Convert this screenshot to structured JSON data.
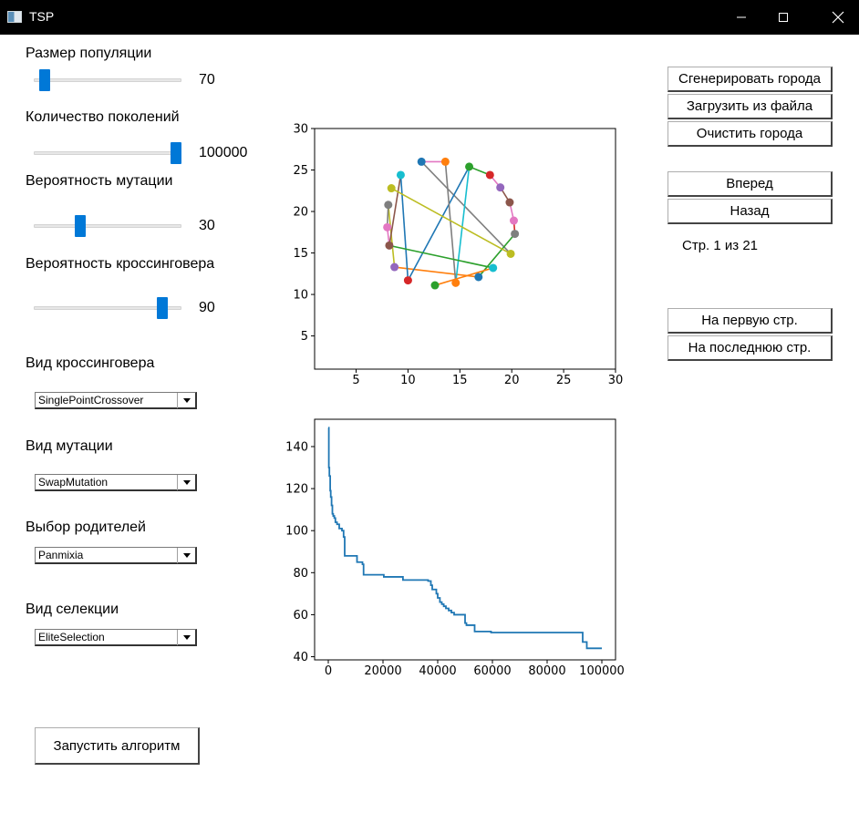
{
  "window": {
    "title": "TSP"
  },
  "controls": {
    "population": {
      "label": "Размер популяции",
      "value": "70",
      "fraction": 0.04
    },
    "generations": {
      "label": "Количество поколений",
      "value": "100000",
      "fraction": 1.0
    },
    "mutation_prob": {
      "label": "Вероятность мутации",
      "value": "30",
      "fraction": 0.3
    },
    "crossover_prob": {
      "label": "Вероятность кроссинговера",
      "value": "90",
      "fraction": 0.9
    },
    "crossover_type": {
      "label": "Вид кроссинговера",
      "selected": "SinglePointCrossover"
    },
    "mutation_type": {
      "label": "Вид мутации",
      "selected": "SwapMutation"
    },
    "parent_selection": {
      "label": "Выбор родителей",
      "selected": "Panmixia"
    },
    "selection_type": {
      "label": "Вид селекции",
      "selected": "EliteSelection"
    },
    "run_button": "Запустить алгоритм"
  },
  "right_panel": {
    "generate": "Сгенерировать города",
    "load": "Загрузить из файла",
    "clear": "Очистить города",
    "forward": "Вперед",
    "back": "Назад",
    "page_status": "Стр. 1 из 21",
    "first_page": "На первую стр.",
    "last_page": "На последнюю стр."
  },
  "chart_data": [
    {
      "type": "scatter",
      "xlim": [
        1,
        30
      ],
      "ylim": [
        1,
        30
      ],
      "xticks": [
        5,
        10,
        15,
        20,
        25,
        30
      ],
      "yticks": [
        5,
        10,
        15,
        20,
        25,
        30
      ],
      "cities": [
        {
          "x": 11.3,
          "y": 26.0,
          "color": "#1f77b4"
        },
        {
          "x": 13.6,
          "y": 26.0,
          "color": "#ff7f0e"
        },
        {
          "x": 15.9,
          "y": 25.4,
          "color": "#2ca02c"
        },
        {
          "x": 17.9,
          "y": 24.4,
          "color": "#d62728"
        },
        {
          "x": 18.9,
          "y": 22.9,
          "color": "#9467bd"
        },
        {
          "x": 19.8,
          "y": 21.1,
          "color": "#8c564b"
        },
        {
          "x": 20.2,
          "y": 18.9,
          "color": "#e377c2"
        },
        {
          "x": 20.3,
          "y": 17.3,
          "color": "#7f7f7f"
        },
        {
          "x": 19.9,
          "y": 14.9,
          "color": "#bcbd22"
        },
        {
          "x": 18.2,
          "y": 13.2,
          "color": "#17becf"
        },
        {
          "x": 16.8,
          "y": 12.1,
          "color": "#1f77b4"
        },
        {
          "x": 14.6,
          "y": 11.4,
          "color": "#ff7f0e"
        },
        {
          "x": 12.6,
          "y": 11.1,
          "color": "#2ca02c"
        },
        {
          "x": 10.0,
          "y": 11.7,
          "color": "#d62728"
        },
        {
          "x": 8.7,
          "y": 13.3,
          "color": "#9467bd"
        },
        {
          "x": 8.2,
          "y": 15.9,
          "color": "#8c564b"
        },
        {
          "x": 8.0,
          "y": 18.1,
          "color": "#e377c2"
        },
        {
          "x": 8.1,
          "y": 20.8,
          "color": "#7f7f7f"
        },
        {
          "x": 8.4,
          "y": 22.8,
          "color": "#bcbd22"
        },
        {
          "x": 9.3,
          "y": 24.4,
          "color": "#17becf"
        }
      ],
      "route": [
        {
          "from": 0,
          "to": 1,
          "color": "#e377c2"
        },
        {
          "from": 0,
          "to": 8,
          "color": "#7f7f7f"
        },
        {
          "from": 3,
          "to": 4,
          "color": "#e377c2"
        },
        {
          "from": 4,
          "to": 5,
          "color": "#8c564b"
        },
        {
          "from": 5,
          "to": 6,
          "color": "#e377c2"
        },
        {
          "from": 6,
          "to": 7,
          "color": "#d62728"
        },
        {
          "from": 7,
          "to": 10,
          "color": "#2ca02c"
        },
        {
          "from": 10,
          "to": 14,
          "color": "#ff7f0e"
        },
        {
          "from": 14,
          "to": 17,
          "color": "#bcbd22"
        },
        {
          "from": 17,
          "to": 16,
          "color": "#7f7f7f"
        },
        {
          "from": 16,
          "to": 15,
          "color": "#e377c2"
        },
        {
          "from": 15,
          "to": 19,
          "color": "#8c564b"
        },
        {
          "from": 19,
          "to": 13,
          "color": "#1f77b4"
        },
        {
          "from": 13,
          "to": 2,
          "color": "#1f77b4"
        },
        {
          "from": 2,
          "to": 11,
          "color": "#17becf"
        },
        {
          "from": 11,
          "to": 1,
          "color": "#7f7f7f"
        },
        {
          "from": 18,
          "to": 8,
          "color": "#bcbd22"
        },
        {
          "from": 15,
          "to": 9,
          "color": "#2ca02c"
        },
        {
          "from": 12,
          "to": 9,
          "color": "#ff7f0e"
        },
        {
          "from": 2,
          "to": 3,
          "color": "#2ca02c"
        }
      ]
    },
    {
      "type": "line",
      "xlim": [
        -5000,
        105000
      ],
      "ylim": [
        38.5,
        153
      ],
      "xticks": [
        0,
        20000,
        40000,
        60000,
        80000,
        100000
      ],
      "yticks": [
        40,
        60,
        80,
        100,
        120,
        140
      ],
      "color": "#1f77b4",
      "x": [
        0,
        200,
        400,
        700,
        900,
        1200,
        1500,
        1800,
        2200,
        2600,
        3200,
        4000,
        5000,
        5600,
        6000,
        10000,
        10500,
        12000,
        12500,
        12900,
        20000,
        20300,
        27000,
        27300,
        36000,
        36500,
        37500,
        38000,
        39500,
        40000,
        40800,
        41500,
        42200,
        43000,
        44000,
        45000,
        46000,
        47000,
        50000,
        50500,
        53000,
        53500,
        59000,
        59500,
        92500,
        93000,
        94000,
        94500,
        100000
      ],
      "y": [
        149,
        130,
        126,
        119,
        116,
        112,
        108,
        107,
        106,
        104,
        103,
        101,
        100,
        97,
        88,
        88,
        85,
        85,
        84,
        79,
        79,
        78,
        78,
        76.5,
        76.5,
        76,
        74,
        72,
        70,
        68,
        66,
        65,
        64,
        63,
        62,
        61,
        60,
        60,
        56,
        55,
        55,
        52,
        52,
        51.5,
        51.5,
        47,
        47,
        44,
        44
      ]
    }
  ]
}
